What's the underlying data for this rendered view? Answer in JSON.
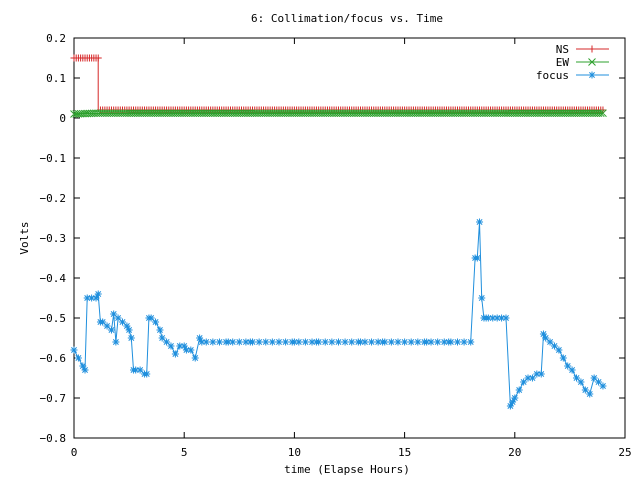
{
  "chart_data": {
    "type": "line",
    "title": "6: Collimation/focus vs. Time",
    "xlabel": "time (Elapse Hours)",
    "ylabel": "Volts",
    "xlim": [
      0,
      25
    ],
    "ylim": [
      -0.8,
      0.2
    ],
    "xticks": [
      0,
      5,
      10,
      15,
      20,
      25
    ],
    "xtick_labels": [
      "0",
      "5",
      "10",
      "15",
      "20",
      "25"
    ],
    "yticks": [
      0.2,
      0.1,
      0,
      -0.1,
      -0.2,
      -0.3,
      -0.4,
      -0.5,
      -0.6,
      -0.7,
      -0.8
    ],
    "ytick_labels": [
      "0.2",
      "0.1",
      "0",
      "−0.1",
      "−0.2",
      "−0.3",
      "−0.4",
      "−0.5",
      "−0.6",
      "−0.7",
      "−0.8"
    ],
    "grid": false,
    "legend_position": "top-right",
    "series": [
      {
        "name": "NS",
        "color": "#d62728",
        "marker": "plus",
        "x": [
          0,
          1.1,
          1.1,
          24
        ],
        "y": [
          0.15,
          0.15,
          0.02,
          0.02
        ]
      },
      {
        "name": "EW",
        "color": "#2ca02c",
        "marker": "cross",
        "x": [
          0,
          1.0,
          24
        ],
        "y": [
          0.01,
          0.012,
          0.012
        ]
      },
      {
        "name": "focus",
        "color": "#1f8fdd",
        "marker": "star",
        "x": [
          0,
          0.2,
          0.4,
          0.5,
          0.6,
          0.8,
          1.0,
          1.1,
          1.2,
          1.3,
          1.5,
          1.7,
          1.8,
          1.9,
          2.0,
          2.2,
          2.4,
          2.5,
          2.6,
          2.7,
          2.8,
          3.0,
          3.2,
          3.3,
          3.4,
          3.5,
          3.7,
          3.9,
          4.0,
          4.2,
          4.4,
          4.6,
          4.8,
          5.0,
          5.1,
          5.3,
          5.5,
          5.7,
          5.8,
          6.0,
          7,
          8,
          9,
          10,
          11,
          12,
          13,
          14,
          15,
          16,
          17,
          18.0,
          18.2,
          18.3,
          18.4,
          18.5,
          18.6,
          18.7,
          18.8,
          19.0,
          19.2,
          19.4,
          19.6,
          19.8,
          19.9,
          20.0,
          20.2,
          20.4,
          20.6,
          20.8,
          21.0,
          21.2,
          21.3,
          21.4,
          21.6,
          21.8,
          22.0,
          22.2,
          22.4,
          22.6,
          22.8,
          23.0,
          23.2,
          23.4,
          23.6,
          23.8,
          24.0
        ],
        "y": [
          -0.58,
          -0.6,
          -0.62,
          -0.63,
          -0.45,
          -0.45,
          -0.45,
          -0.44,
          -0.51,
          -0.51,
          -0.52,
          -0.53,
          -0.49,
          -0.56,
          -0.5,
          -0.51,
          -0.52,
          -0.53,
          -0.55,
          -0.63,
          -0.63,
          -0.63,
          -0.64,
          -0.64,
          -0.5,
          -0.5,
          -0.51,
          -0.53,
          -0.55,
          -0.56,
          -0.57,
          -0.59,
          -0.57,
          -0.57,
          -0.58,
          -0.58,
          -0.6,
          -0.55,
          -0.56,
          -0.56,
          -0.56,
          -0.56,
          -0.56,
          -0.56,
          -0.56,
          -0.56,
          -0.56,
          -0.56,
          -0.56,
          -0.56,
          -0.56,
          -0.56,
          -0.35,
          -0.35,
          -0.26,
          -0.45,
          -0.5,
          -0.5,
          -0.5,
          -0.5,
          -0.5,
          -0.5,
          -0.5,
          -0.72,
          -0.71,
          -0.7,
          -0.68,
          -0.66,
          -0.65,
          -0.65,
          -0.64,
          -0.64,
          -0.54,
          -0.55,
          -0.56,
          -0.57,
          -0.58,
          -0.6,
          -0.62,
          -0.63,
          -0.65,
          -0.66,
          -0.68,
          -0.69,
          -0.65,
          -0.66,
          -0.67
        ]
      }
    ]
  }
}
